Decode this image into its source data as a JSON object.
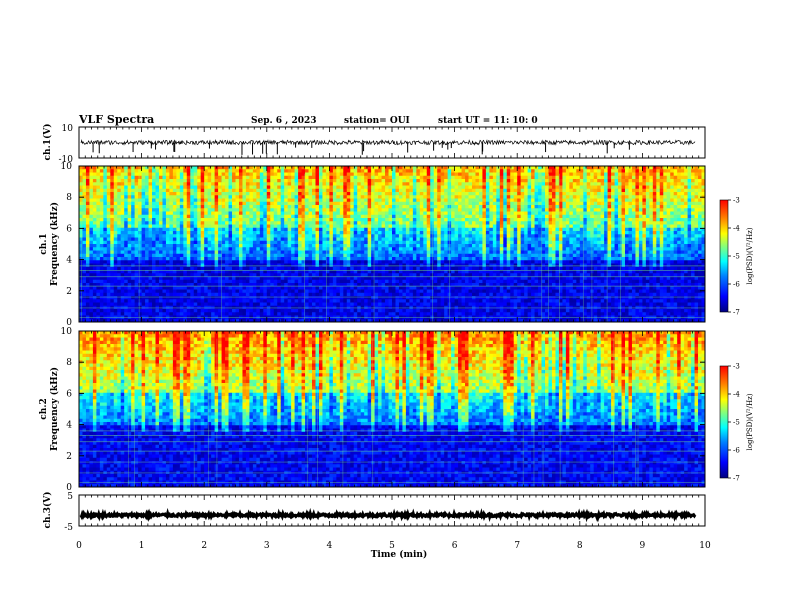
{
  "header": {
    "title": "VLF Spectra",
    "date": "Sep. 6 , 2023",
    "station": "station= OUI",
    "start_ut": "start UT =   11: 10: 0"
  },
  "chart_data": {
    "type": "heatmap",
    "time_axis": {
      "label": "Time (min)",
      "range": [
        0,
        10
      ],
      "ticks": [
        "0",
        "1",
        "2",
        "3",
        "4",
        "5",
        "6",
        "7",
        "8",
        "9",
        "10"
      ]
    },
    "panels": [
      {
        "kind": "waveform",
        "ylabel": "ch.1(V)",
        "yrange": [
          -10,
          10
        ],
        "yticks": [
          "10",
          "-10"
        ],
        "baseline_v": 0,
        "color": "#000000"
      },
      {
        "kind": "spectrogram",
        "ylabel": "ch.1 Frequency (kHz)",
        "ylabel_line1": "ch.1",
        "ylabel_line2": "Frequency (kHz)",
        "yrange_khz": [
          0,
          10
        ],
        "yticks": [
          "0",
          "2",
          "4",
          "6",
          "8",
          "10"
        ],
        "intensity_note": "strong broadband emission 6-10 kHz, weak 2-6 kHz, horizontal narrowband lines below 4 kHz",
        "colorbar": {
          "label": "log(PSD)(V²/Hz)",
          "range": [
            -7,
            -3
          ],
          "ticks": [
            "-3",
            "-4",
            "-5",
            "-6",
            "-7"
          ]
        }
      },
      {
        "kind": "spectrogram",
        "ylabel": "ch.2 Frequency (kHz)",
        "ylabel_line1": "ch.2",
        "ylabel_line2": "Frequency (kHz)",
        "yrange_khz": [
          0,
          10
        ],
        "yticks": [
          "0",
          "2",
          "4",
          "6",
          "8",
          "10"
        ],
        "intensity_note": "strong broadband emission 6-10 kHz with red bursts, moderate 2-6 kHz, narrowband lines below 4 kHz",
        "colorbar": {
          "label": "log(PSD)(V²/Hz)",
          "range": [
            -7,
            -3
          ],
          "ticks": [
            "-3",
            "-4",
            "-5",
            "-6",
            "-7"
          ]
        }
      },
      {
        "kind": "waveform",
        "ylabel": "ch.3(V)",
        "yrange": [
          -5,
          5
        ],
        "yticks": [
          "5",
          "-5"
        ],
        "baseline_v": -1.5,
        "color": "#000000"
      }
    ],
    "colormap": [
      "#00007f",
      "#0000ff",
      "#0080ff",
      "#00ffff",
      "#80ff80",
      "#ffff00",
      "#ff8000",
      "#ff0000"
    ]
  }
}
